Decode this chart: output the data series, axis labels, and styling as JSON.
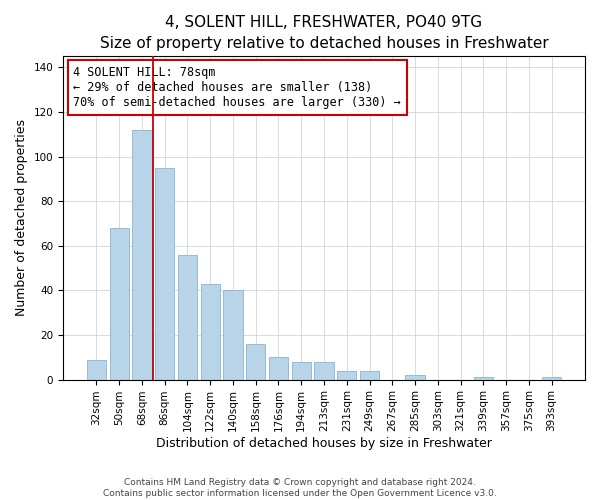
{
  "title": "4, SOLENT HILL, FRESHWATER, PO40 9TG",
  "subtitle": "Size of property relative to detached houses in Freshwater",
  "xlabel": "Distribution of detached houses by size in Freshwater",
  "ylabel": "Number of detached properties",
  "bar_labels": [
    "32sqm",
    "50sqm",
    "68sqm",
    "86sqm",
    "104sqm",
    "122sqm",
    "140sqm",
    "158sqm",
    "176sqm",
    "194sqm",
    "213sqm",
    "231sqm",
    "249sqm",
    "267sqm",
    "285sqm",
    "303sqm",
    "321sqm",
    "339sqm",
    "357sqm",
    "375sqm",
    "393sqm"
  ],
  "bar_values": [
    9,
    68,
    112,
    95,
    56,
    43,
    40,
    16,
    10,
    8,
    8,
    4,
    4,
    0,
    2,
    0,
    0,
    1,
    0,
    0,
    1
  ],
  "bar_color": "#b8d4e8",
  "bar_edge_color": "#8ab4cf",
  "vline_color": "#cc0000",
  "ylim": [
    0,
    145
  ],
  "yticks": [
    0,
    20,
    40,
    60,
    80,
    100,
    120,
    140
  ],
  "annotation_text": "4 SOLENT HILL: 78sqm\n← 29% of detached houses are smaller (138)\n70% of semi-detached houses are larger (330) →",
  "annotation_box_color": "#ffffff",
  "annotation_box_edge": "#cc0000",
  "footnote1": "Contains HM Land Registry data © Crown copyright and database right 2024.",
  "footnote2": "Contains public sector information licensed under the Open Government Licence v3.0.",
  "title_fontsize": 11,
  "subtitle_fontsize": 9.5,
  "xlabel_fontsize": 9,
  "ylabel_fontsize": 9,
  "tick_fontsize": 7.5,
  "annotation_fontsize": 8.5,
  "footnote_fontsize": 6.5
}
